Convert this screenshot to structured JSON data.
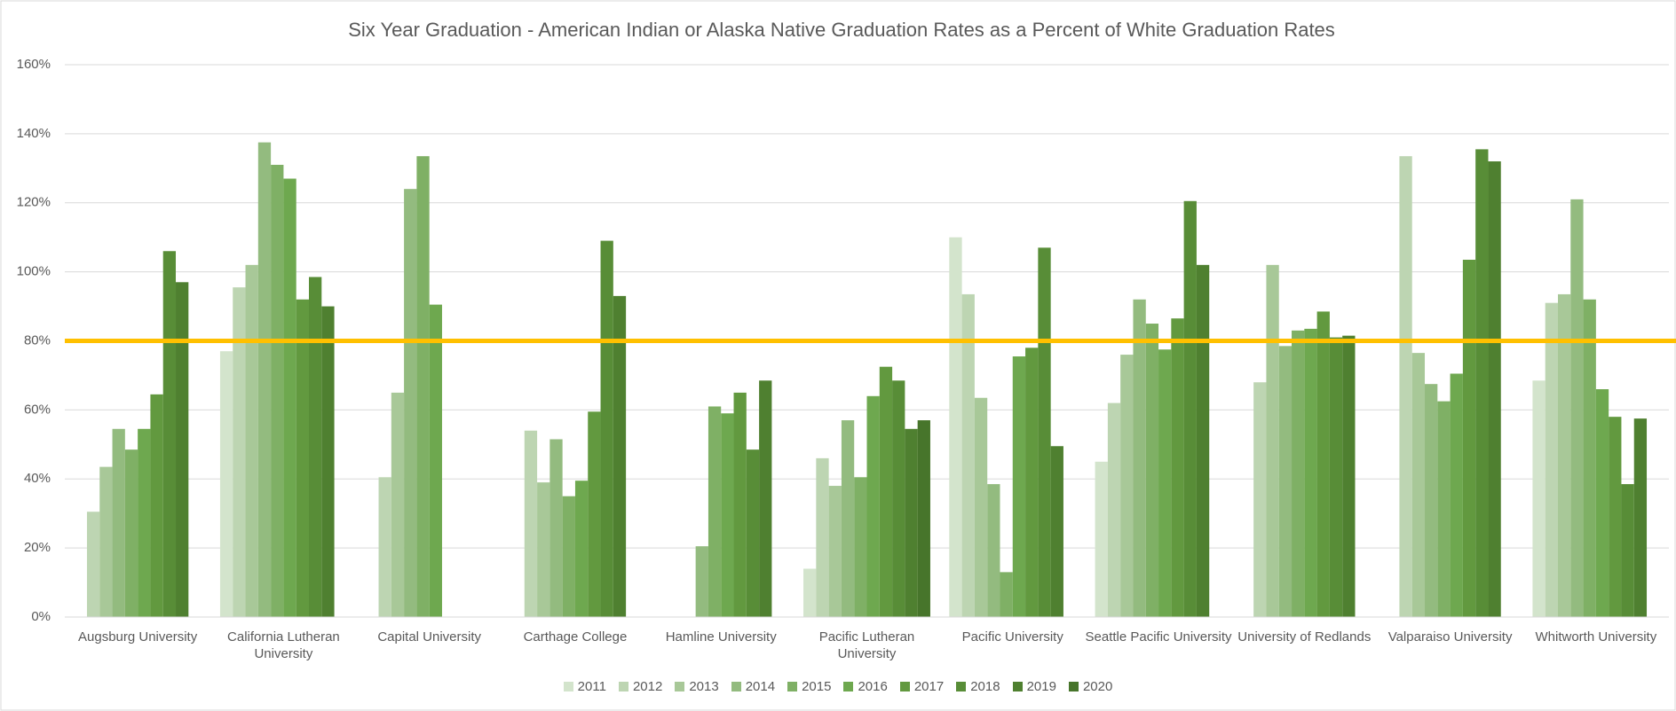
{
  "chart_data": {
    "type": "bar",
    "title": "Six Year Graduation - American Indian or Alaska Native Graduation Rates as a Percent of White Graduation Rates",
    "categories": [
      "Augsburg University",
      "California Lutheran University",
      "Capital University",
      "Carthage College",
      "Hamline University",
      "Pacific Lutheran University",
      "Pacific University",
      "Seattle Pacific University",
      "University of Redlands",
      "Valparaiso University",
      "Whitworth University"
    ],
    "series": [
      {
        "name": "2011",
        "color": "#d3e4cc",
        "values": [
          null,
          77,
          null,
          null,
          null,
          14,
          110,
          45,
          null,
          null,
          68.5
        ]
      },
      {
        "name": "2012",
        "color": "#bdd5b2",
        "values": [
          30.5,
          95.5,
          40.5,
          54,
          null,
          46,
          93.5,
          62,
          68,
          133.5,
          91
        ]
      },
      {
        "name": "2013",
        "color": "#a8c898",
        "values": [
          43.5,
          102,
          65,
          39,
          null,
          38,
          63.5,
          76,
          102,
          76.5,
          93.5
        ]
      },
      {
        "name": "2014",
        "color": "#93bb7f",
        "values": [
          54.5,
          137.5,
          124,
          51.5,
          20.5,
          57,
          38.5,
          92,
          78.5,
          67.5,
          121
        ]
      },
      {
        "name": "2015",
        "color": "#7fb065",
        "values": [
          48.5,
          131,
          133.5,
          35,
          61,
          40.5,
          13,
          85,
          83,
          62.5,
          92
        ]
      },
      {
        "name": "2016",
        "color": "#6ea84f",
        "values": [
          54.5,
          127,
          90.5,
          39.5,
          59,
          64,
          75.5,
          77.5,
          83.5,
          70.5,
          66
        ]
      },
      {
        "name": "2017",
        "color": "#62993f",
        "values": [
          64.5,
          92,
          null,
          59.5,
          65,
          72.5,
          78,
          86.5,
          88.5,
          103.5,
          58
        ]
      },
      {
        "name": "2018",
        "color": "#588d37",
        "values": [
          106,
          98.5,
          null,
          109,
          48.5,
          68.5,
          107,
          120.5,
          81,
          135.5,
          38.5
        ]
      },
      {
        "name": "2019",
        "color": "#4f8030",
        "values": [
          97,
          90,
          null,
          93,
          68.5,
          54.5,
          49.5,
          102,
          81.5,
          132,
          57.5
        ]
      },
      {
        "name": "2020",
        "color": "#47752b",
        "values": [
          null,
          null,
          null,
          null,
          null,
          57,
          null,
          null,
          null,
          null,
          null
        ]
      }
    ],
    "ylim": [
      0,
      160
    ],
    "yticks": [
      {
        "value": 0,
        "label": "0%"
      },
      {
        "value": 20,
        "label": "20%"
      },
      {
        "value": 40,
        "label": "40%"
      },
      {
        "value": 60,
        "label": "60%"
      },
      {
        "value": 80,
        "label": "80%"
      },
      {
        "value": 100,
        "label": "100%"
      },
      {
        "value": 120,
        "label": "120%"
      },
      {
        "value": 140,
        "label": "140%"
      },
      {
        "value": 160,
        "label": "160%"
      }
    ],
    "grid": true,
    "reference_line": {
      "value": 80,
      "color": "#ffc000"
    },
    "legend": "bottom"
  }
}
